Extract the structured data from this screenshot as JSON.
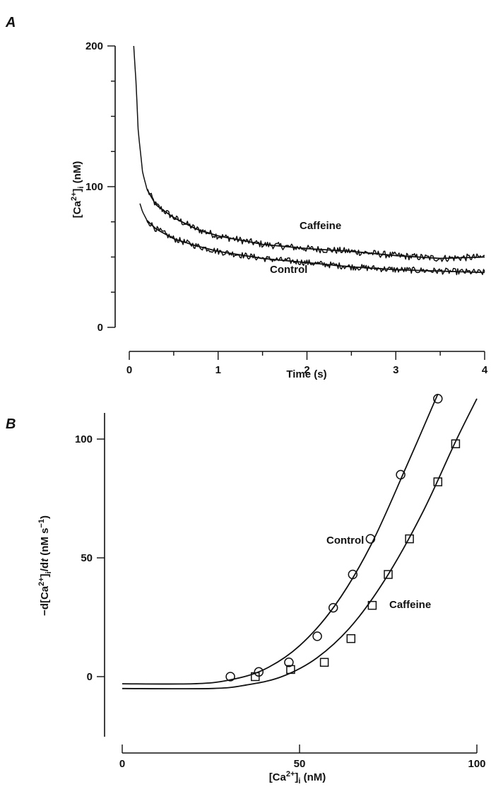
{
  "chart_data": [
    {
      "panel": "A",
      "type": "line",
      "xlabel": "Time (s)",
      "ylabel": "[Ca2+]i (nM)",
      "xlim": [
        0,
        4
      ],
      "ylim": [
        0,
        200
      ],
      "xticks": [
        "0",
        "1",
        "2",
        "3",
        "4"
      ],
      "yticks": [
        "0",
        "100",
        "200"
      ],
      "series": [
        {
          "name": "Caffeine",
          "x": [
            0.05,
            0.08,
            0.1,
            0.15,
            0.2,
            0.3,
            0.5,
            0.75,
            1.0,
            1.5,
            2.0,
            2.5,
            3.0,
            3.5,
            4.0
          ],
          "y": [
            200,
            170,
            140,
            110,
            98,
            87,
            78,
            70,
            65,
            59,
            56,
            54,
            51,
            49,
            50
          ]
        },
        {
          "name": "Control",
          "x": [
            0.12,
            0.15,
            0.2,
            0.3,
            0.5,
            0.75,
            1.0,
            1.5,
            2.0,
            2.5,
            3.0,
            3.5,
            4.0
          ],
          "y": [
            88,
            82,
            76,
            70,
            63,
            58,
            54,
            49,
            46,
            43,
            41,
            40,
            39
          ]
        }
      ]
    },
    {
      "panel": "B",
      "type": "scatter",
      "xlabel": "[Ca2+]i (nM)",
      "ylabel": "−d[Ca2+]i/dt (nM s−1)",
      "xlim": [
        0,
        100
      ],
      "ylim": [
        -20,
        120
      ],
      "xticks": [
        "0",
        "50",
        "100"
      ],
      "yticks": [
        "0",
        "50",
        "100"
      ],
      "series": [
        {
          "name": "Control",
          "marker": "circle",
          "points": [
            [
              30.5,
              0
            ],
            [
              38.5,
              2
            ],
            [
              47,
              6
            ],
            [
              55,
              17
            ],
            [
              59.5,
              29
            ],
            [
              65,
              43
            ],
            [
              70,
              58
            ],
            [
              78.5,
              85
            ],
            [
              89,
              117
            ]
          ],
          "fit_x": [
            0,
            20,
            30,
            40,
            50,
            60,
            70,
            80,
            89
          ],
          "fit_y": [
            -3,
            -3,
            -1.5,
            3,
            13,
            30,
            55,
            88,
            119
          ]
        },
        {
          "name": "Caffeine",
          "marker": "square",
          "points": [
            [
              37.5,
              0
            ],
            [
              47.5,
              3
            ],
            [
              57,
              6
            ],
            [
              64.5,
              16
            ],
            [
              70.5,
              30
            ],
            [
              75,
              43
            ],
            [
              81,
              58
            ],
            [
              89,
              82
            ],
            [
              94,
              98
            ]
          ],
          "fit_x": [
            0,
            25,
            35,
            45,
            55,
            65,
            75,
            85,
            94,
            100
          ],
          "fit_y": [
            -5,
            -5,
            -3.5,
            0,
            8,
            22,
            43,
            70,
            99,
            117
          ]
        }
      ]
    }
  ]
}
